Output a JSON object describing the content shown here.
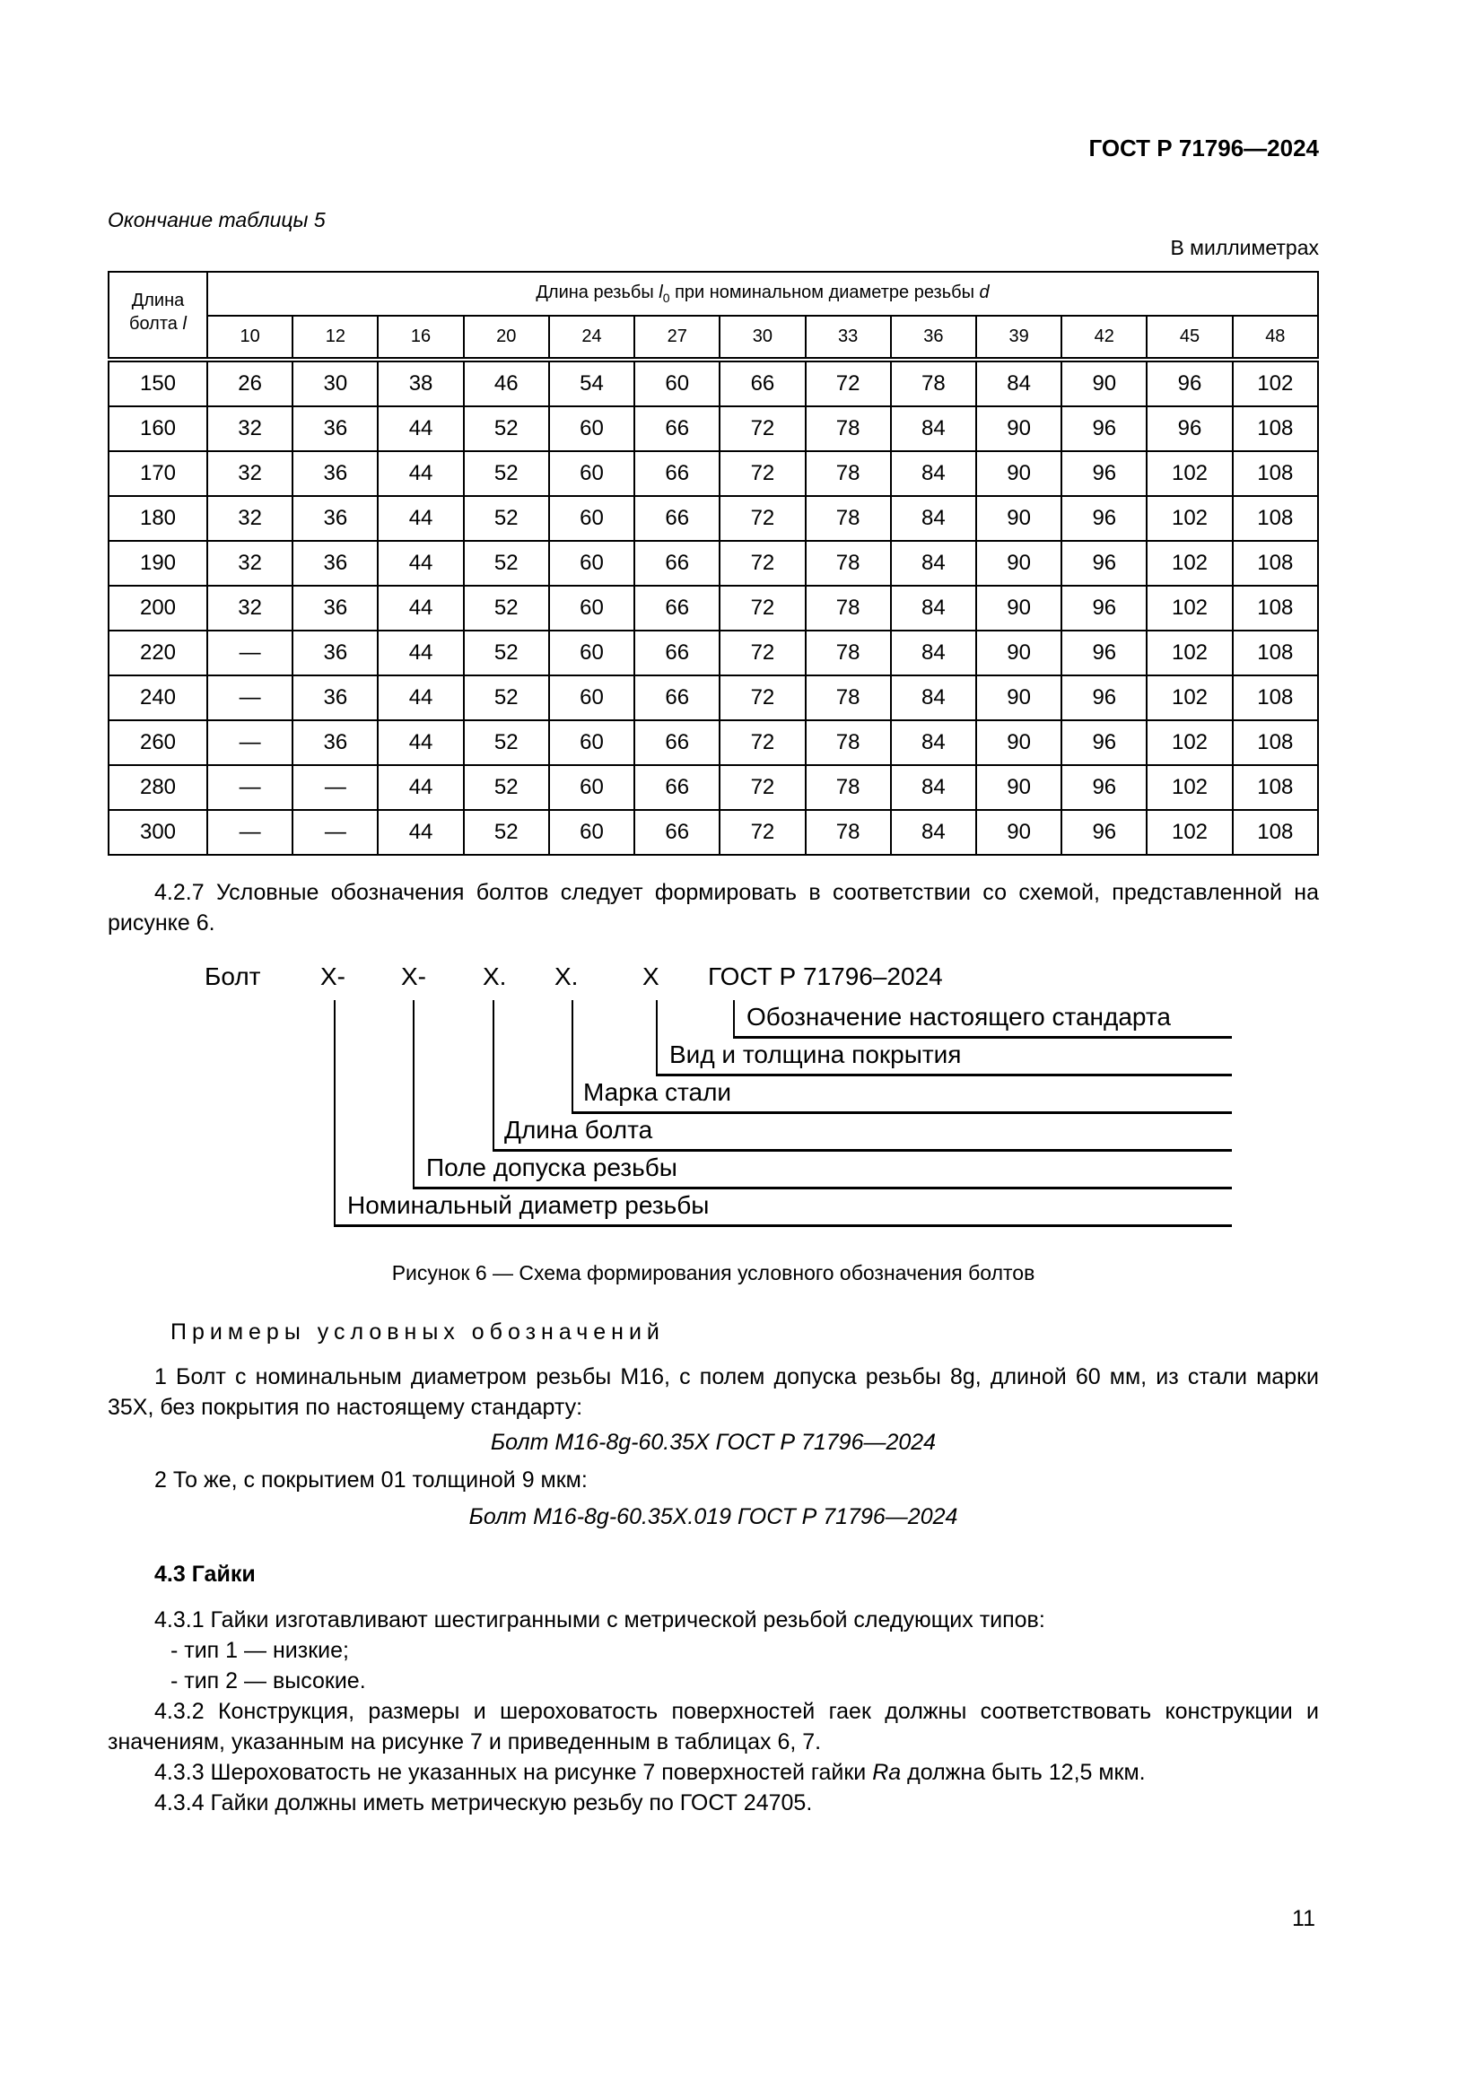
{
  "header": {
    "doc_id": "ГОСТ Р 71796—2024"
  },
  "table": {
    "continuation": "Окончание таблицы 5",
    "units": "В миллиметрах",
    "col0_header_line1": "Длина",
    "col0_header_line2": "болта l",
    "group_header": "Длина резьбы l0 при номинальном диаметре резьбы d",
    "diameters": [
      "10",
      "12",
      "16",
      "20",
      "24",
      "27",
      "30",
      "33",
      "36",
      "39",
      "42",
      "45",
      "48"
    ],
    "rows": [
      [
        "150",
        "26",
        "30",
        "38",
        "46",
        "54",
        "60",
        "66",
        "72",
        "78",
        "84",
        "90",
        "96",
        "102"
      ],
      [
        "160",
        "32",
        "36",
        "44",
        "52",
        "60",
        "66",
        "72",
        "78",
        "84",
        "90",
        "96",
        "96",
        "108"
      ],
      [
        "170",
        "32",
        "36",
        "44",
        "52",
        "60",
        "66",
        "72",
        "78",
        "84",
        "90",
        "96",
        "102",
        "108"
      ],
      [
        "180",
        "32",
        "36",
        "44",
        "52",
        "60",
        "66",
        "72",
        "78",
        "84",
        "90",
        "96",
        "102",
        "108"
      ],
      [
        "190",
        "32",
        "36",
        "44",
        "52",
        "60",
        "66",
        "72",
        "78",
        "84",
        "90",
        "96",
        "102",
        "108"
      ],
      [
        "200",
        "32",
        "36",
        "44",
        "52",
        "60",
        "66",
        "72",
        "78",
        "84",
        "90",
        "96",
        "102",
        "108"
      ],
      [
        "220",
        "—",
        "36",
        "44",
        "52",
        "60",
        "66",
        "72",
        "78",
        "84",
        "90",
        "96",
        "102",
        "108"
      ],
      [
        "240",
        "—",
        "36",
        "44",
        "52",
        "60",
        "66",
        "72",
        "78",
        "84",
        "90",
        "96",
        "102",
        "108"
      ],
      [
        "260",
        "—",
        "36",
        "44",
        "52",
        "60",
        "66",
        "72",
        "78",
        "84",
        "90",
        "96",
        "102",
        "108"
      ],
      [
        "280",
        "—",
        "—",
        "44",
        "52",
        "60",
        "66",
        "72",
        "78",
        "84",
        "90",
        "96",
        "102",
        "108"
      ],
      [
        "300",
        "—",
        "—",
        "44",
        "52",
        "60",
        "66",
        "72",
        "78",
        "84",
        "90",
        "96",
        "102",
        "108"
      ]
    ]
  },
  "p427": "4.2.7 Условные обозначения болтов следует формировать в соответствии со схемой, представленной на рисунке 6.",
  "diagram": {
    "tokens": [
      "Болт",
      "X-",
      "X-",
      "X.",
      "X.",
      "X",
      "ГОСТ Р 71796–2024"
    ],
    "labels": [
      "Обозначение настоящего стандарта",
      "Вид и толщина покрытия",
      "Марка стали",
      "Длина болта",
      "Поле допуска резьбы",
      "Номинальный диаметр резьбы"
    ],
    "caption": "Рисунок 6 — Схема формирования условного обозначения болтов"
  },
  "examples": {
    "title": "Примеры условных обозначений",
    "ex1": "1 Болт с номинальным диаметром резьбы М16, с полем допуска резьбы 8g, длиной 60 мм, из стали марки 35Х, без покрытия по настоящему стандарту:",
    "ex1_code": "Болт М16-8g-60.35Х ГОСТ Р 71796—2024",
    "ex2": "2 То же, с покрытием 01 толщиной 9 мкм:",
    "ex2_code": "Болт М16-8g-60.35Х.019 ГОСТ Р 71796—2024"
  },
  "s43": {
    "title": "4.3 Гайки",
    "p1": "4.3.1 Гайки изготавливают шестигранными с метрической резьбой следующих типов:",
    "li1": "- тип 1 — низкие;",
    "li2": "- тип 2 — высокие.",
    "p2": "4.3.2 Конструкция, размеры и шероховатость поверхностей гаек должны соответствовать конструкции и значениям, указанным на рисунке 7 и приведенным в таблицах 6, 7.",
    "p3": "4.3.3 Шероховатость не указанных на рисунке 7 поверхностей гайки Ra должна быть 12,5 мкм.",
    "p4": "4.3.4 Гайки должны иметь метрическую резьбу по ГОСТ 24705."
  },
  "page_number": "11"
}
